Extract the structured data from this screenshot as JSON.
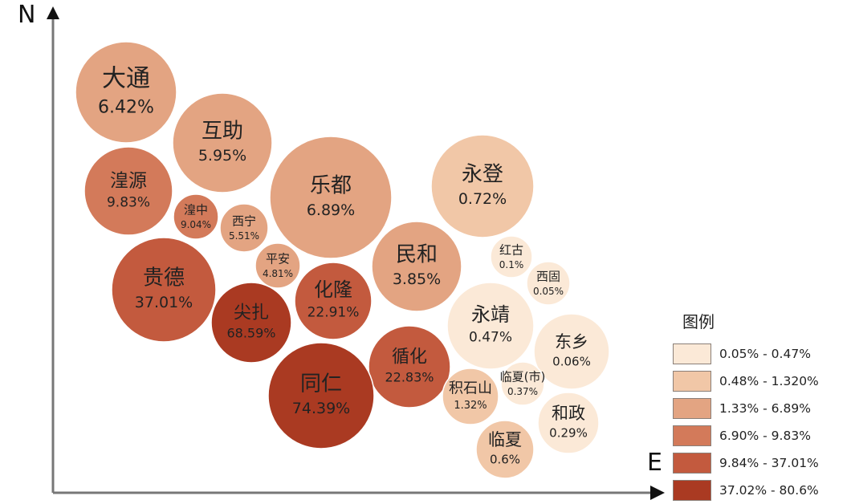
{
  "chart_data": {
    "type": "bubble",
    "axes": {
      "y_label": "N",
      "x_label": "E"
    },
    "legend": {
      "title": "图例",
      "classes": [
        {
          "label": "0.05% - 0.47%",
          "color": "#fbe9d7"
        },
        {
          "label": "0.48% - 1.320%",
          "color": "#f1c7a7"
        },
        {
          "label": "1.33% - 6.89%",
          "color": "#e3a482"
        },
        {
          "label": "6.90% - 9.83%",
          "color": "#d37a5a"
        },
        {
          "label": "9.84% - 37.01%",
          "color": "#c35a3e"
        },
        {
          "label": "37.02% - 80.6%",
          "color": "#aa3a22"
        }
      ]
    },
    "bubbles": [
      {
        "name": "大通",
        "value": 6.42,
        "label": "6.42%",
        "class": 2
      },
      {
        "name": "互助",
        "value": 5.95,
        "label": "5.95%",
        "class": 2
      },
      {
        "name": "乐都",
        "value": 6.89,
        "label": "6.89%",
        "class": 2
      },
      {
        "name": "永登",
        "value": 0.72,
        "label": "0.72%",
        "class": 1
      },
      {
        "name": "湟源",
        "value": 9.83,
        "label": "9.83%",
        "class": 3
      },
      {
        "name": "湟中",
        "value": 9.04,
        "label": "9.04%",
        "class": 3
      },
      {
        "name": "西宁",
        "value": 5.51,
        "label": "5.51%",
        "class": 2
      },
      {
        "name": "平安",
        "value": 4.81,
        "label": "4.81%",
        "class": 2
      },
      {
        "name": "贵德",
        "value": 37.01,
        "label": "37.01%",
        "class": 4
      },
      {
        "name": "民和",
        "value": 3.85,
        "label": "3.85%",
        "class": 2
      },
      {
        "name": "红古",
        "value": 0.1,
        "label": "0.1%",
        "class": 0
      },
      {
        "name": "西固",
        "value": 0.05,
        "label": "0.05%",
        "class": 0
      },
      {
        "name": "化隆",
        "value": 22.91,
        "label": "22.91%",
        "class": 4
      },
      {
        "name": "尖扎",
        "value": 68.59,
        "label": "68.59%",
        "class": 5
      },
      {
        "name": "永靖",
        "value": 0.47,
        "label": "0.47%",
        "class": 0
      },
      {
        "name": "东乡",
        "value": 0.06,
        "label": "0.06%",
        "class": 0
      },
      {
        "name": "循化",
        "value": 22.83,
        "label": "22.83%",
        "class": 4
      },
      {
        "name": "同仁",
        "value": 74.39,
        "label": "74.39%",
        "class": 5
      },
      {
        "name": "积石山",
        "value": 1.32,
        "label": "1.32%",
        "class": 1
      },
      {
        "name": "临夏(市)",
        "value": 0.37,
        "label": "0.37%",
        "class": 0
      },
      {
        "name": "和政",
        "value": 0.29,
        "label": "0.29%",
        "class": 0
      },
      {
        "name": "临夏",
        "value": 0.6,
        "label": "0.6%",
        "class": 1
      }
    ]
  }
}
